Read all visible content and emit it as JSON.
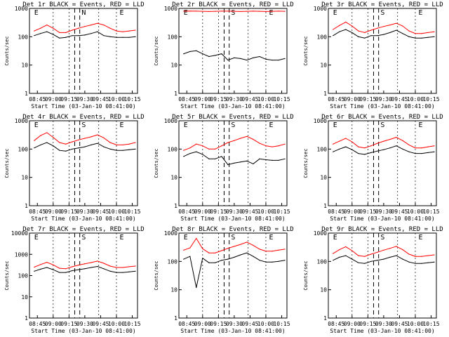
{
  "chart_data": [
    {
      "type": "line",
      "title": "Det 1r BLACK = Events, RED = LLD",
      "xlabel": "Start Time (03-Jan-10 08:41:00)",
      "ylabel": "Counts/sec",
      "xticks": [
        "08:45",
        "09:00",
        "09:15",
        "09:30",
        "09:45",
        "10:00",
        "10:15"
      ],
      "ylim": [
        1,
        1000
      ],
      "yscale": "log",
      "yticks": [
        "1",
        "10",
        "100",
        "1000"
      ],
      "annotations": [
        "E",
        "N",
        "E"
      ],
      "series": [
        {
          "name": "Events",
          "color": "#000000",
          "x": [
            8.7,
            8.8,
            8.9,
            9.0,
            9.1,
            9.2,
            9.3,
            9.4,
            9.5,
            9.6,
            9.7,
            9.8,
            9.9,
            10.0,
            10.1,
            10.2,
            10.3
          ],
          "y": [
            110,
            130,
            150,
            120,
            90,
            95,
            110,
            110,
            115,
            130,
            150,
            110,
            100,
            95,
            95,
            95,
            100
          ]
        },
        {
          "name": "LLD",
          "color": "#ff0000",
          "x": [
            8.7,
            8.8,
            8.9,
            9.0,
            9.1,
            9.2,
            9.3,
            9.4,
            9.5,
            9.6,
            9.7,
            9.8,
            9.9,
            10.0,
            10.1,
            10.2,
            10.3
          ],
          "y": [
            160,
            200,
            260,
            200,
            140,
            140,
            170,
            200,
            230,
            260,
            300,
            260,
            200,
            160,
            150,
            160,
            170
          ]
        }
      ]
    },
    {
      "type": "line",
      "title": "Det 2r BLACK = Events, RED = LLD",
      "xlabel": "Start Time (03-Jan-10 08:41:00)",
      "ylabel": "Counts/sec",
      "xticks": [
        "08:45",
        "09:00",
        "09:15",
        "09:30",
        "09:45",
        "10:00",
        "10:15"
      ],
      "ylim": [
        1,
        1000
      ],
      "yscale": "log",
      "yticks": [
        "1",
        "10",
        "100",
        "1000"
      ],
      "annotations": [
        "E",
        "S",
        "E"
      ],
      "series": [
        {
          "name": "Events",
          "color": "#000000",
          "x": [
            8.7,
            8.8,
            8.9,
            9.0,
            9.1,
            9.2,
            9.3,
            9.4,
            9.5,
            9.6,
            9.7,
            9.8,
            9.9,
            10.0,
            10.1,
            10.2,
            10.3
          ],
          "y": [
            25,
            30,
            32,
            25,
            20,
            22,
            25,
            15,
            18,
            17,
            15,
            18,
            20,
            16,
            15,
            15,
            17
          ]
        },
        {
          "name": "LLD",
          "color": "#ff0000",
          "x": [
            8.7,
            8.8,
            8.9,
            9.0,
            9.1,
            9.2,
            9.3,
            9.4,
            9.5,
            9.6,
            9.7,
            9.8,
            9.9,
            10.0,
            10.1,
            10.2,
            10.3
          ],
          "y": [
            800,
            810,
            800,
            790,
            780,
            790,
            800,
            800,
            790,
            780,
            790,
            800,
            790,
            780,
            790,
            800,
            790
          ]
        }
      ]
    },
    {
      "type": "line",
      "title": "Det 3r BLACK = Events, RED = LLD",
      "xlabel": "Start Time (03-Jan-10 08:41:00)",
      "ylabel": "Counts/sec",
      "xticks": [
        "08:45",
        "09:00",
        "09:15",
        "09:30",
        "09:45",
        "10:00",
        "10:15"
      ],
      "ylim": [
        1,
        1000
      ],
      "yscale": "log",
      "yticks": [
        "1",
        "10",
        "100",
        "1000"
      ],
      "annotations": [
        "E",
        "S",
        "E"
      ],
      "series": [
        {
          "name": "Events",
          "color": "#000000",
          "x": [
            8.7,
            8.8,
            8.9,
            9.0,
            9.1,
            9.2,
            9.3,
            9.4,
            9.5,
            9.6,
            9.7,
            9.8,
            9.9,
            10.0,
            10.1,
            10.2,
            10.3
          ],
          "y": [
            110,
            150,
            180,
            140,
            100,
            90,
            110,
            110,
            120,
            140,
            170,
            130,
            100,
            90,
            90,
            95,
            100
          ]
        },
        {
          "name": "LLD",
          "color": "#ff0000",
          "x": [
            8.7,
            8.8,
            8.9,
            9.0,
            9.1,
            9.2,
            9.3,
            9.4,
            9.5,
            9.6,
            9.7,
            9.8,
            9.9,
            10.0,
            10.1,
            10.2,
            10.3
          ],
          "y": [
            180,
            250,
            330,
            240,
            160,
            140,
            170,
            200,
            230,
            260,
            300,
            240,
            160,
            130,
            130,
            140,
            150
          ]
        }
      ]
    },
    {
      "type": "line",
      "title": "Det 4r BLACK = Events, RED = LLD",
      "xlabel": "Start Time (03-Jan-10 08:41:00)",
      "ylabel": "Counts/sec",
      "xticks": [
        "08:45",
        "09:00",
        "09:15",
        "09:30",
        "09:45",
        "10:00",
        "10:15"
      ],
      "ylim": [
        1,
        1000
      ],
      "yscale": "log",
      "yticks": [
        "1",
        "10",
        "100",
        "1000"
      ],
      "annotations": [
        "E",
        "S",
        "E"
      ],
      "series": [
        {
          "name": "Events",
          "color": "#000000",
          "x": [
            8.7,
            8.8,
            8.9,
            9.0,
            9.1,
            9.2,
            9.3,
            9.4,
            9.5,
            9.6,
            9.7,
            9.8,
            9.9,
            10.0,
            10.1,
            10.2,
            10.3
          ],
          "y": [
            110,
            140,
            170,
            130,
            90,
            85,
            100,
            110,
            120,
            140,
            160,
            120,
            100,
            90,
            90,
            95,
            100
          ]
        },
        {
          "name": "LLD",
          "color": "#ff0000",
          "x": [
            8.7,
            8.8,
            8.9,
            9.0,
            9.1,
            9.2,
            9.3,
            9.4,
            9.5,
            9.6,
            9.7,
            9.8,
            9.9,
            10.0,
            10.1,
            10.2,
            10.3
          ],
          "y": [
            200,
            300,
            380,
            260,
            170,
            150,
            180,
            210,
            240,
            270,
            320,
            250,
            170,
            140,
            140,
            150,
            170
          ]
        }
      ]
    },
    {
      "type": "line",
      "title": "Det 5r BLACK = Events, RED = LLD",
      "xlabel": "Start Time (03-Jan-10 08:41:00)",
      "ylabel": "Counts/sec",
      "xticks": [
        "08:45",
        "09:00",
        "09:15",
        "09:30",
        "09:45",
        "10:00",
        "10:15"
      ],
      "ylim": [
        1,
        1000
      ],
      "yscale": "log",
      "yticks": [
        "1",
        "10",
        "100",
        "1000"
      ],
      "annotations": [
        "E",
        "S",
        "E"
      ],
      "series": [
        {
          "name": "Events",
          "color": "#000000",
          "x": [
            8.7,
            8.8,
            8.9,
            9.0,
            9.1,
            9.2,
            9.3,
            9.4,
            9.5,
            9.6,
            9.7,
            9.8,
            9.9,
            10.0,
            10.1,
            10.2,
            10.3
          ],
          "y": [
            55,
            70,
            80,
            65,
            45,
            45,
            55,
            28,
            32,
            35,
            38,
            30,
            45,
            42,
            40,
            40,
            45
          ]
        },
        {
          "name": "LLD",
          "color": "#ff0000",
          "x": [
            8.7,
            8.8,
            8.9,
            9.0,
            9.1,
            9.2,
            9.3,
            9.4,
            9.5,
            9.6,
            9.7,
            9.8,
            9.9,
            10.0,
            10.1,
            10.2,
            10.3
          ],
          "y": [
            90,
            110,
            150,
            130,
            100,
            100,
            130,
            170,
            200,
            240,
            280,
            220,
            160,
            130,
            120,
            130,
            150
          ]
        }
      ]
    },
    {
      "type": "line",
      "title": "Det 6r BLACK = Events, RED = LLD",
      "xlabel": "Start Time (03-Jan-10 08:41:00)",
      "ylabel": "Counts/sec",
      "xticks": [
        "08:45",
        "09:00",
        "09:15",
        "09:30",
        "09:45",
        "10:00",
        "10:15"
      ],
      "ylim": [
        1,
        1000
      ],
      "yscale": "log",
      "yticks": [
        "1",
        "10",
        "100",
        "1000"
      ],
      "annotations": [
        "E",
        "S",
        "E"
      ],
      "series": [
        {
          "name": "Events",
          "color": "#000000",
          "x": [
            8.7,
            8.8,
            8.9,
            9.0,
            9.1,
            9.2,
            9.3,
            9.4,
            9.5,
            9.6,
            9.7,
            9.8,
            9.9,
            10.0,
            10.1,
            10.2,
            10.3
          ],
          "y": [
            80,
            100,
            120,
            95,
            70,
            65,
            75,
            85,
            95,
            110,
            130,
            100,
            80,
            70,
            70,
            75,
            80
          ]
        },
        {
          "name": "LLD",
          "color": "#ff0000",
          "x": [
            8.7,
            8.8,
            8.9,
            9.0,
            9.1,
            9.2,
            9.3,
            9.4,
            9.5,
            9.6,
            9.7,
            9.8,
            9.9,
            10.0,
            10.1,
            10.2,
            10.3
          ],
          "y": [
            150,
            190,
            240,
            180,
            120,
            110,
            130,
            160,
            190,
            220,
            260,
            200,
            140,
            110,
            110,
            120,
            130
          ]
        }
      ]
    },
    {
      "type": "line",
      "title": "Det 7r BLACK = Events, RED = LLD",
      "xlabel": "Start Time (03-Jan-10 08:41:00)",
      "ylabel": "Counts/sec",
      "xticks": [
        "08:45",
        "09:00",
        "09:15",
        "09:30",
        "09:45",
        "10:00",
        "10:15"
      ],
      "ylim": [
        1,
        10000
      ],
      "yscale": "log",
      "yticks": [
        "1",
        "10",
        "100",
        "1000",
        "10000"
      ],
      "annotations": [
        "E",
        "S",
        "E"
      ],
      "series": [
        {
          "name": "Events",
          "color": "#000000",
          "x": [
            8.7,
            8.8,
            8.9,
            9.0,
            9.1,
            9.2,
            9.3,
            9.4,
            9.5,
            9.6,
            9.7,
            9.8,
            9.9,
            10.0,
            10.1,
            10.2,
            10.3
          ],
          "y": [
            160,
            200,
            240,
            190,
            140,
            140,
            170,
            190,
            210,
            240,
            270,
            210,
            160,
            140,
            140,
            150,
            160
          ]
        },
        {
          "name": "LLD",
          "color": "#ff0000",
          "x": [
            8.7,
            8.8,
            8.9,
            9.0,
            9.1,
            9.2,
            9.3,
            9.4,
            9.5,
            9.6,
            9.7,
            9.8,
            9.9,
            10.0,
            10.1,
            10.2,
            10.3
          ],
          "y": [
            250,
            330,
            420,
            320,
            220,
            210,
            260,
            310,
            360,
            410,
            480,
            380,
            280,
            240,
            240,
            260,
            280
          ]
        }
      ]
    },
    {
      "type": "line",
      "title": "Det 8r BLACK = Events, RED = LLD",
      "xlabel": "Start Time (03-Jan-10 08:41:00)",
      "ylabel": "Counts/sec",
      "xticks": [
        "08:45",
        "09:00",
        "09:15",
        "09:30",
        "09:45",
        "10:00",
        "10:15"
      ],
      "ylim": [
        1,
        1000
      ],
      "yscale": "log",
      "yticks": [
        "1",
        "10",
        "100",
        "1000"
      ],
      "annotations": [
        "E",
        "S",
        "E"
      ],
      "series": [
        {
          "name": "Events",
          "color": "#000000",
          "x": [
            8.7,
            8.8,
            8.9,
            9.0,
            9.1,
            9.2,
            9.3,
            9.4,
            9.5,
            9.6,
            9.7,
            9.8,
            9.9,
            10.0,
            10.1,
            10.2,
            10.3
          ],
          "y": [
            120,
            150,
            12,
            130,
            90,
            90,
            110,
            120,
            140,
            170,
            200,
            150,
            110,
            95,
            95,
            100,
            110
          ]
        },
        {
          "name": "LLD",
          "color": "#ff0000",
          "x": [
            8.7,
            8.8,
            8.9,
            9.0,
            9.1,
            9.2,
            9.3,
            9.4,
            9.5,
            9.6,
            9.7,
            9.8,
            9.9,
            10.0,
            10.1,
            10.2,
            10.3
          ],
          "y": [
            250,
            300,
            650,
            280,
            200,
            200,
            240,
            290,
            340,
            400,
            480,
            370,
            270,
            230,
            230,
            250,
            270
          ]
        }
      ]
    },
    {
      "type": "line",
      "title": "Det 9r BLACK = Events, RED = LLD",
      "xlabel": "Start Time (03-Jan-10 08:41:00)",
      "ylabel": "Counts/sec",
      "xticks": [
        "08:45",
        "09:00",
        "09:15",
        "09:30",
        "09:45",
        "10:00",
        "10:15"
      ],
      "ylim": [
        1,
        1000
      ],
      "yscale": "log",
      "yticks": [
        "1",
        "10",
        "100",
        "1000"
      ],
      "annotations": [
        "E",
        "S",
        "E"
      ],
      "series": [
        {
          "name": "Events",
          "color": "#000000",
          "x": [
            8.7,
            8.8,
            8.9,
            9.0,
            9.1,
            9.2,
            9.3,
            9.4,
            9.5,
            9.6,
            9.7,
            9.8,
            9.9,
            10.0,
            10.1,
            10.2,
            10.3
          ],
          "y": [
            110,
            140,
            160,
            120,
            90,
            85,
            100,
            110,
            120,
            140,
            160,
            120,
            95,
            85,
            85,
            90,
            95
          ]
        },
        {
          "name": "LLD",
          "color": "#ff0000",
          "x": [
            8.7,
            8.8,
            8.9,
            9.0,
            9.1,
            9.2,
            9.3,
            9.4,
            9.5,
            9.6,
            9.7,
            9.8,
            9.9,
            10.0,
            10.1,
            10.2,
            10.3
          ],
          "y": [
            190,
            260,
            330,
            240,
            160,
            150,
            180,
            210,
            250,
            290,
            340,
            260,
            180,
            150,
            150,
            160,
            170
          ]
        }
      ]
    }
  ]
}
